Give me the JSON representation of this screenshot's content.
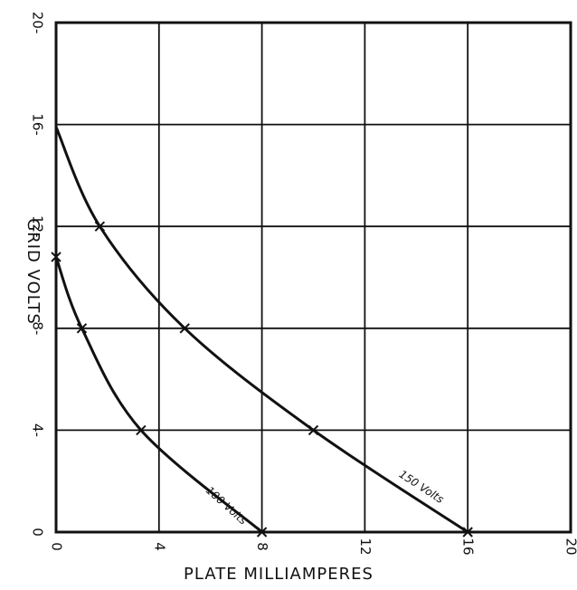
{
  "chart_data": {
    "type": "line",
    "title": "",
    "xlabel": "PLATE MILLIAMPERES",
    "ylabel": "GRID VOLTS",
    "xlim": [
      0,
      20
    ],
    "ylim": [
      0,
      20
    ],
    "x_ticks": [
      0,
      4,
      8,
      12,
      16,
      20
    ],
    "y_ticks": [
      0,
      4,
      8,
      12,
      16,
      20
    ],
    "x_tick_labels": [
      "0",
      "4",
      "8",
      "12",
      "16",
      "20"
    ],
    "y_tick_labels": [
      "0",
      "4-",
      "8-",
      "12-",
      "16-",
      "20-"
    ],
    "grid": true,
    "series": [
      {
        "name": "100 Volts",
        "x": [
          0,
          1,
          3.3,
          8
        ],
        "y": [
          10.8,
          8,
          4,
          0
        ],
        "markers": [
          [
            0,
            10.8
          ],
          [
            1,
            8
          ],
          [
            3.3,
            4
          ],
          [
            8,
            0
          ]
        ]
      },
      {
        "name": "150 Volts",
        "x": [
          0,
          1.7,
          5,
          10,
          16
        ],
        "y": [
          15.9,
          12,
          8,
          4,
          0
        ],
        "markers": [
          [
            1.7,
            12
          ],
          [
            5,
            8
          ],
          [
            10,
            4
          ],
          [
            16,
            0
          ]
        ]
      }
    ]
  }
}
